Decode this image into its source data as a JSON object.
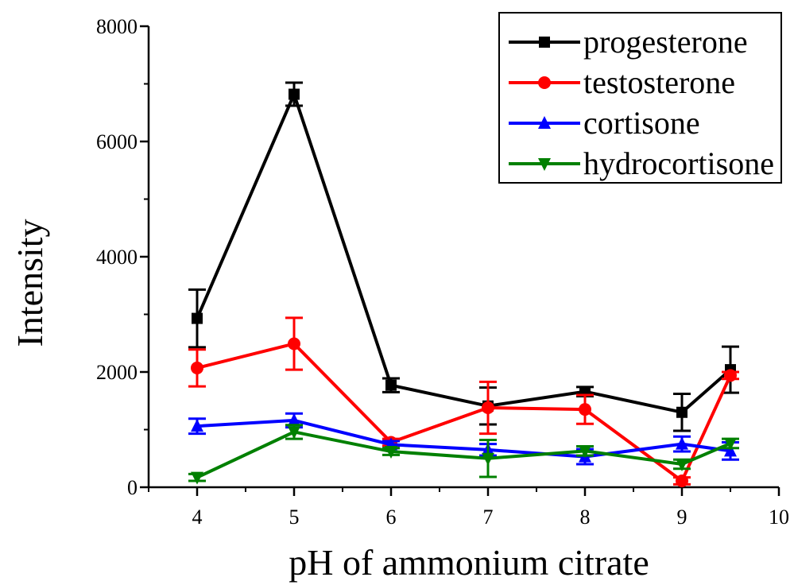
{
  "chart_data": {
    "type": "line",
    "title": "",
    "xlabel": "pH of  ammonium citrate",
    "ylabel": "Intensity",
    "xlim": [
      3.5,
      10
    ],
    "ylim": [
      0,
      8000
    ],
    "x_ticks": [
      "4",
      "5",
      "6",
      "7",
      "8",
      "9",
      "10"
    ],
    "y_ticks": [
      "0",
      "2000",
      "4000",
      "6000",
      "8000"
    ],
    "grid": false,
    "legend_position": "top-right",
    "x": [
      4,
      5,
      6,
      7,
      8,
      9,
      9.5
    ],
    "series": [
      {
        "name": "progesterone",
        "color": "#000000",
        "marker": "square",
        "values": [
          2930,
          6820,
          1770,
          1410,
          1660,
          1300,
          2040
        ],
        "errors": [
          500,
          200,
          120,
          320,
          80,
          320,
          400
        ]
      },
      {
        "name": "testosterone",
        "color": "#ff0000",
        "marker": "circle",
        "values": [
          2070,
          2490,
          780,
          1380,
          1350,
          110,
          1940
        ],
        "errors": [
          320,
          450,
          60,
          450,
          250,
          60,
          60
        ]
      },
      {
        "name": "cortisone",
        "color": "#0000ff",
        "marker": "triangle-up",
        "values": [
          1060,
          1160,
          740,
          650,
          530,
          750,
          630
        ],
        "errors": [
          130,
          120,
          60,
          100,
          130,
          130,
          150
        ]
      },
      {
        "name": "hydrocortisone",
        "color": "#008000",
        "marker": "triangle-down",
        "values": [
          170,
          960,
          620,
          500,
          630,
          400,
          760
        ],
        "errors": [
          60,
          120,
          60,
          320,
          80,
          80,
          80
        ]
      }
    ]
  }
}
